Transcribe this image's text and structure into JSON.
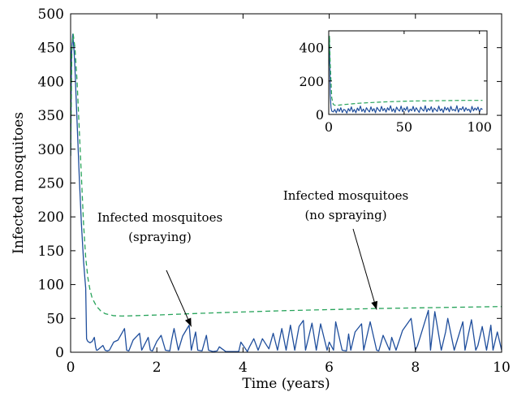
{
  "chart_data": [
    {
      "type": "line",
      "title": "",
      "xlabel": "Time (years)",
      "ylabel": "Infected mosquitoes",
      "xlim": [
        0,
        10
      ],
      "ylim": [
        0,
        500
      ],
      "xticks": [
        0,
        2,
        4,
        6,
        8,
        10
      ],
      "yticks": [
        0,
        50,
        100,
        150,
        200,
        250,
        300,
        350,
        400,
        450,
        500
      ],
      "grid": false,
      "series": [
        {
          "style": "solid",
          "color": "#1f4e9c",
          "x": [
            0,
            0.02,
            0.05,
            0.08,
            0.1,
            0.15,
            0.2,
            0.25,
            0.3,
            0.33,
            0.35,
            0.37,
            0.39,
            0.4,
            0.45,
            0.5,
            0.55,
            0.58,
            0.6,
            0.62,
            0.75,
            0.8,
            0.85,
            0.9,
            1.0,
            1.1,
            1.25,
            1.3,
            1.35,
            1.45,
            1.6,
            1.65,
            1.8,
            1.85,
            1.9,
            2.0,
            2.1,
            2.2,
            2.3,
            2.35,
            2.4,
            2.5,
            2.6,
            2.75,
            2.8,
            2.9,
            2.95,
            3.05,
            3.15,
            3.2,
            3.3,
            3.4,
            3.45,
            3.6,
            3.8,
            3.9,
            3.95,
            4.1,
            4.15,
            4.25,
            4.35,
            4.45,
            4.6,
            4.7,
            4.8,
            4.9,
            5.0,
            5.1,
            5.2,
            5.3,
            5.4,
            5.45,
            5.6,
            5.7,
            5.8,
            5.95,
            6.0,
            6.1,
            6.15,
            6.3,
            6.4,
            6.45,
            6.5,
            6.6,
            6.75,
            6.8,
            6.95,
            7.1,
            7.15,
            7.25,
            7.4,
            7.45,
            7.55,
            7.7,
            7.9,
            8.0,
            8.05,
            8.3,
            8.35,
            8.45,
            8.6,
            8.7,
            8.75,
            8.9,
            9.1,
            9.15,
            9.3,
            9.4,
            9.45,
            9.55,
            9.65,
            9.75,
            9.8,
            9.9,
            10.0
          ],
          "values": [
            290,
            440,
            470,
            445,
            420,
            340,
            260,
            190,
            135,
            110,
            95,
            20,
            17,
            16,
            14,
            16,
            22,
            8,
            3,
            3,
            10,
            3,
            2,
            3,
            15,
            18,
            35,
            3,
            2,
            18,
            28,
            3,
            22,
            3,
            2,
            16,
            25,
            3,
            2,
            20,
            35,
            3,
            24,
            40,
            3,
            30,
            3,
            2,
            25,
            3,
            1,
            2,
            8,
            1,
            1,
            1,
            15,
            1,
            8,
            20,
            3,
            20,
            5,
            28,
            3,
            35,
            3,
            40,
            3,
            38,
            47,
            3,
            43,
            3,
            42,
            3,
            15,
            3,
            45,
            3,
            2,
            27,
            3,
            30,
            42,
            3,
            45,
            3,
            2,
            25,
            3,
            22,
            3,
            32,
            50,
            3,
            10,
            62,
            3,
            60,
            3,
            30,
            50,
            3,
            45,
            3,
            48,
            3,
            10,
            38,
            3,
            40,
            3,
            30,
            3
          ]
        },
        {
          "style": "dashed",
          "color": "#27a35a",
          "x": [
            0,
            0.03,
            0.06,
            0.1,
            0.15,
            0.2,
            0.25,
            0.3,
            0.35,
            0.4,
            0.45,
            0.5,
            0.6,
            0.7,
            0.8,
            1.0,
            1.2,
            1.5,
            2.0,
            3.0,
            4.0,
            5.0,
            6.0,
            7.0,
            8.0,
            9.0,
            10.0
          ],
          "values": [
            290,
            450,
            470,
            450,
            400,
            330,
            260,
            190,
            140,
            110,
            92,
            80,
            68,
            61,
            57,
            54,
            53.5,
            54,
            55,
            57.5,
            59.5,
            61.5,
            63,
            64.5,
            65.5,
            66.5,
            67.5
          ]
        }
      ],
      "annotations": [
        {
          "lines": [
            "Infected mosquitoes",
            "(spraying)"
          ],
          "arrow_to": [
            2.8,
            38
          ]
        },
        {
          "lines": [
            "Infected mosquitoes",
            "(no spraying)"
          ],
          "arrow_to": [
            7.1,
            63
          ]
        }
      ]
    },
    {
      "type": "line",
      "title": "",
      "xlabel": "",
      "ylabel": "",
      "xlim": [
        0,
        105
      ],
      "ylim": [
        0,
        500
      ],
      "xticks": [
        0,
        50,
        100
      ],
      "yticks": [
        0,
        200,
        400
      ],
      "grid": false,
      "series": [
        {
          "style": "solid",
          "color": "#1f4e9c",
          "x": [
            0,
            0.3,
            0.6,
            1.0,
            1.5,
            2,
            3,
            4,
            5,
            6,
            7,
            8,
            9,
            10,
            11,
            12,
            13,
            14,
            15,
            16,
            17,
            18,
            19,
            20,
            21,
            22,
            23,
            24,
            25,
            26,
            27,
            28,
            29,
            30,
            31,
            32,
            33,
            34,
            35,
            36,
            37,
            38,
            39,
            40,
            41,
            42,
            43,
            44,
            45,
            46,
            47,
            48,
            49,
            50,
            51,
            52,
            53,
            54,
            55,
            56,
            57,
            58,
            59,
            60,
            61,
            62,
            63,
            64,
            65,
            66,
            67,
            68,
            69,
            70,
            71,
            72,
            73,
            74,
            75,
            76,
            77,
            78,
            79,
            80,
            81,
            82,
            83,
            84,
            85,
            86,
            87,
            88,
            89,
            90,
            91,
            92,
            93,
            94,
            95,
            96,
            97,
            98,
            99,
            100,
            101,
            102
          ],
          "values": [
            290,
            465,
            380,
            120,
            40,
            20,
            15,
            30,
            10,
            35,
            18,
            40,
            12,
            30,
            25,
            8,
            35,
            20,
            45,
            15,
            30,
            10,
            38,
            22,
            50,
            18,
            32,
            12,
            40,
            26,
            15,
            45,
            20,
            35,
            10,
            42,
            28,
            18,
            48,
            22,
            36,
            14,
            40,
            25,
            52,
            18,
            34,
            12,
            44,
            28,
            20,
            50,
            16,
            38,
            24,
            46,
            14,
            32,
            22,
            48,
            18,
            40,
            26,
            12,
            44,
            30,
            20,
            52,
            16,
            36,
            24,
            46,
            14,
            38,
            28,
            18,
            50,
            22,
            34,
            12,
            44,
            26,
            40,
            16,
            48,
            24,
            30,
            20,
            52,
            14,
            36,
            28,
            46,
            18,
            40,
            24,
            32,
            12,
            48,
            22,
            38,
            26,
            44,
            16,
            36,
            30
          ]
        },
        {
          "style": "dashed",
          "color": "#27a35a",
          "x": [
            0,
            0.5,
            1,
            2,
            3,
            4,
            6,
            8,
            10,
            15,
            20,
            30,
            40,
            50,
            60,
            70,
            80,
            90,
            100,
            102
          ],
          "values": [
            290,
            470,
            300,
            100,
            60,
            55,
            55,
            57,
            59,
            63,
            67,
            72,
            76,
            79,
            81,
            82,
            83,
            84,
            84,
            84
          ]
        }
      ]
    }
  ]
}
